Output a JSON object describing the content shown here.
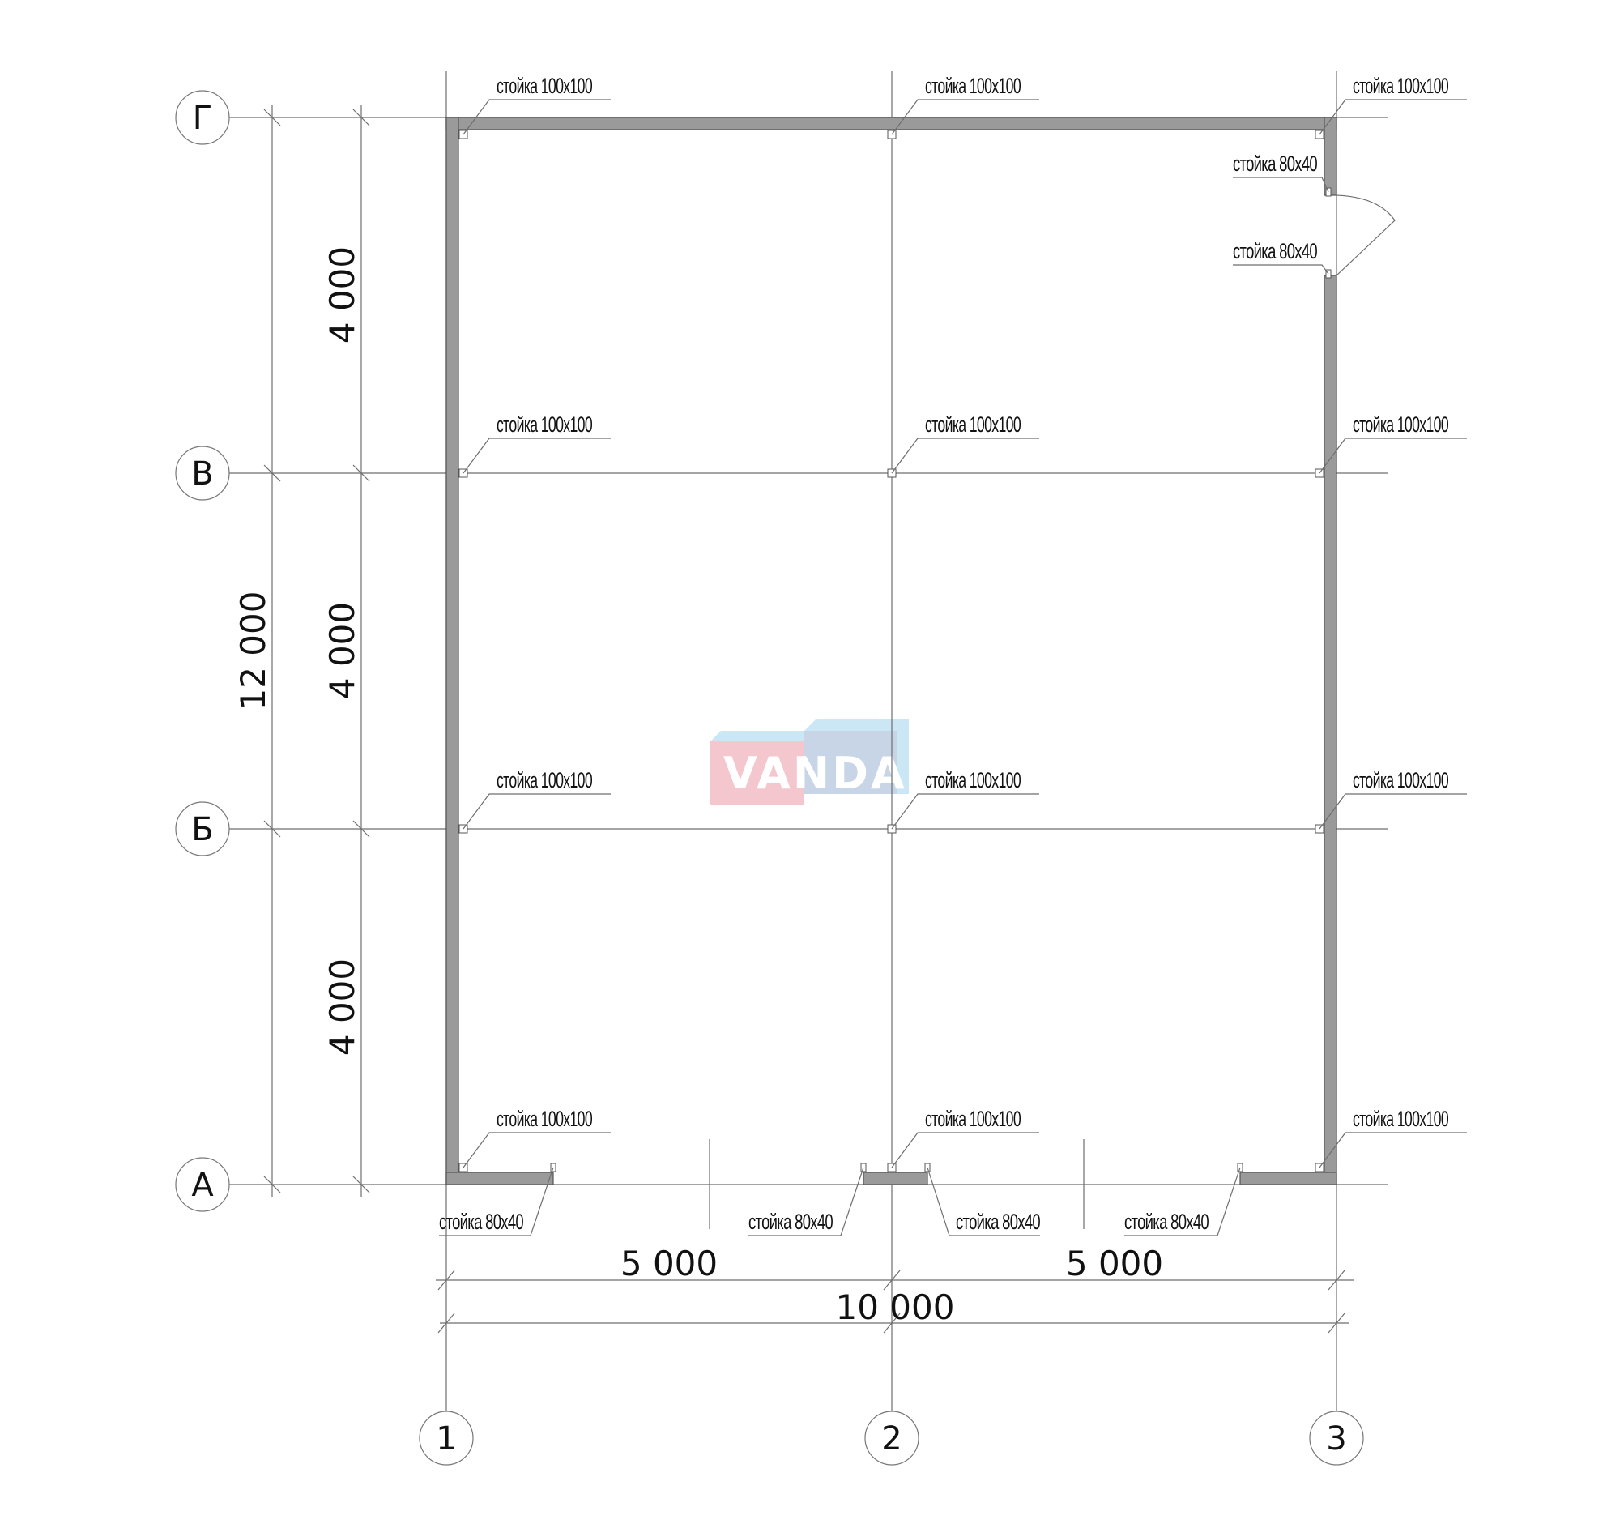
{
  "axes": {
    "rows": [
      "Г",
      "В",
      "Б",
      "А"
    ],
    "columns": [
      "1",
      "2",
      "3"
    ]
  },
  "dimensions": {
    "vertical_total": "12 000",
    "vertical_segments": [
      "4 000",
      "4 000",
      "4 000"
    ],
    "horizontal_segments": [
      "5 000",
      "5 000"
    ],
    "horizontal_total": "10 000"
  },
  "post_labels": {
    "main": "стойка 100x100",
    "door": "стойка 80x40"
  },
  "watermark": {
    "text": "VANDA",
    "colors": {
      "pink": "#f4c4cb",
      "blue": "#c9e6f5",
      "overlap": "#c6d3e6"
    }
  },
  "colors": {
    "wall": "#9a9a9a",
    "line": "#6e6e6e"
  }
}
